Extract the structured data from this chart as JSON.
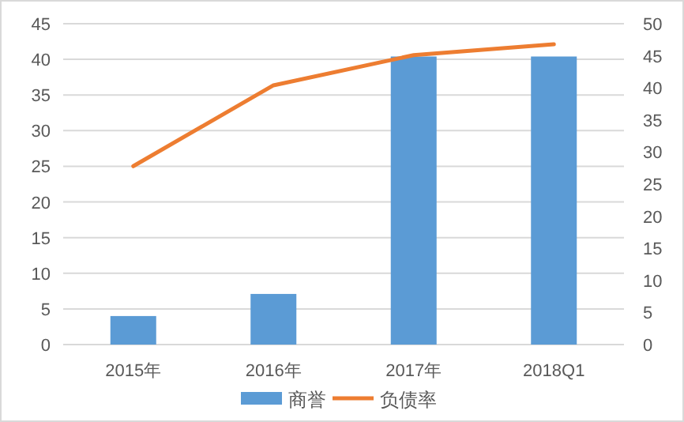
{
  "chart_data": {
    "type": "bar",
    "categories": [
      "2015年",
      "2016年",
      "2017年",
      "2018Q1"
    ],
    "series": [
      {
        "name": "商誉",
        "color": "#5b9bd5",
        "values": [
          4.0,
          7.1,
          40.4,
          40.4
        ]
      },
      {
        "name": "负债率",
        "type": "line",
        "axis": "y2",
        "color": "#ed7d31",
        "values": [
          27.8,
          40.4,
          45.1,
          46.8
        ]
      }
    ],
    "ylim": [
      0,
      45
    ],
    "yticks": [
      0,
      5,
      10,
      15,
      20,
      25,
      30,
      35,
      40,
      45
    ],
    "y2lim": [
      0,
      50
    ],
    "y2ticks": [
      0,
      5,
      10,
      15,
      20,
      25,
      30,
      35,
      40,
      45,
      50
    ],
    "grid": "y",
    "legend": "bottom"
  }
}
